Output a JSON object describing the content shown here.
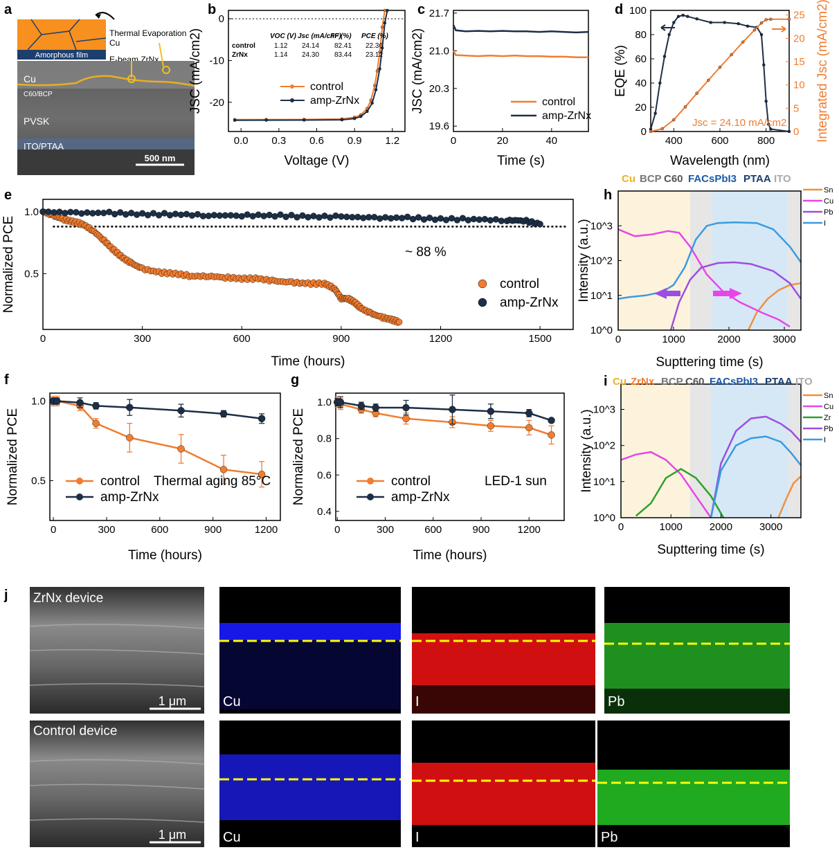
{
  "colors": {
    "control": "#f07d30",
    "amp": "#1c2f46",
    "cu": "#e845e8",
    "pb": "#9b4fe0",
    "i": "#3a9be0",
    "sn": "#f0903e",
    "zr": "#2aa02a",
    "cu_band": "#fdf3dc",
    "bcp_band": "#e6e6e6",
    "pvsk_band": "#d6e8f6"
  },
  "panel_labels": {
    "a": "a",
    "b": "b",
    "c": "c",
    "d": "d",
    "e": "e",
    "f": "f",
    "g": "g",
    "h": "h",
    "i": "i",
    "j": "j"
  },
  "panel_a": {
    "labels": {
      "thermal": "Thermal Evaporation",
      "cu_top": "Cu",
      "amorphous": "Amorphous film",
      "ebeam": "E-beam ZrNx",
      "cu": "Cu",
      "c60bcp": "C60/BCP",
      "pvsk": "PVSK",
      "ito": "ITO/PTAA",
      "scale": "500 nm"
    }
  },
  "panel_j": {
    "labels": {
      "zrn_device": "ZrNx device",
      "control_device": "Control device",
      "scale1": "1 μm",
      "scale2": "1 μm",
      "cu1": "Cu",
      "i1": "I",
      "pb1": "Pb",
      "cu2": "Cu",
      "i2": "I",
      "pb2": "Pb"
    }
  },
  "chart_data": [
    {
      "id": "b",
      "type": "line",
      "xlabel": "Voltage (V)",
      "ylabel": "JSC (mA/cm2)",
      "xlim": [
        -0.1,
        1.3
      ],
      "ylim": [
        -27,
        2
      ],
      "xticks": [
        "0.0",
        "0.3",
        "0.6",
        "0.9",
        "1.2"
      ],
      "yticks": [
        "0",
        "-10",
        "-20"
      ],
      "legend": [
        "control",
        "amp-ZrNx"
      ],
      "table": {
        "header": [
          "VOC (V)",
          "Jsc (mA/cm²)",
          "FF (%)",
          "PCE (%)"
        ],
        "rows": [
          {
            "name": "control",
            "values": [
              "1.12",
              "24.14",
              "82.41",
              "22.36"
            ]
          },
          {
            "name": "ZrNx",
            "values": [
              "1.14",
              "24.30",
              "83.44",
              "23.12"
            ]
          }
        ]
      },
      "series": [
        {
          "name": "control",
          "x": [
            -0.05,
            0.2,
            0.5,
            0.8,
            0.9,
            0.95,
            1.0,
            1.03,
            1.06,
            1.08,
            1.1,
            1.12,
            1.14
          ],
          "y": [
            -24.14,
            -24.13,
            -24.11,
            -24.0,
            -23.6,
            -23.0,
            -21.5,
            -19.5,
            -16.0,
            -12.5,
            -8.0,
            -2.0,
            2.0
          ]
        },
        {
          "name": "amp-ZrNx",
          "x": [
            -0.05,
            0.2,
            0.5,
            0.8,
            0.9,
            0.95,
            1.0,
            1.04,
            1.07,
            1.1,
            1.12,
            1.14,
            1.16
          ],
          "y": [
            -24.3,
            -24.29,
            -24.27,
            -24.2,
            -23.9,
            -23.4,
            -22.2,
            -20.2,
            -17.0,
            -12.0,
            -7.0,
            -1.0,
            2.0
          ]
        }
      ]
    },
    {
      "id": "c",
      "type": "line",
      "xlabel": "Time (s)",
      "ylabel": "JSC (mA/cm2)",
      "xlim": [
        0,
        55
      ],
      "ylim": [
        19.5,
        21.75
      ],
      "xticks": [
        "0",
        "20",
        "40"
      ],
      "yticks": [
        "21.7",
        "21.0",
        "20.3",
        "19.6"
      ],
      "legend": [
        "control",
        "amp-ZrNx"
      ],
      "series": [
        {
          "name": "control",
          "x": [
            0,
            1,
            5,
            10,
            15,
            20,
            25,
            30,
            35,
            40,
            45,
            50,
            55
          ],
          "y": [
            21.0,
            20.92,
            20.91,
            20.9,
            20.91,
            20.9,
            20.91,
            20.9,
            20.9,
            20.89,
            20.89,
            20.88,
            20.88
          ]
        },
        {
          "name": "amp-ZrNx",
          "x": [
            0,
            1,
            5,
            10,
            15,
            20,
            25,
            30,
            35,
            40,
            45,
            50,
            55
          ],
          "y": [
            21.48,
            21.38,
            21.36,
            21.37,
            21.36,
            21.37,
            21.36,
            21.36,
            21.35,
            21.36,
            21.35,
            21.34,
            21.35
          ]
        }
      ]
    },
    {
      "id": "d",
      "type": "line",
      "xlabel": "Wavelength (nm)",
      "ylabel": "EQE (%)",
      "y2label": "Integrated Jsc (mA/cm2)",
      "xlim": [
        300,
        900
      ],
      "ylim": [
        0,
        100
      ],
      "y2lim": [
        0,
        26
      ],
      "xticks": [
        "400",
        "600",
        "800"
      ],
      "yticks": [
        "0",
        "20",
        "40",
        "60",
        "80",
        "100"
      ],
      "y2ticks": [
        "0",
        "5",
        "10",
        "15",
        "20",
        "25"
      ],
      "annotation": "Jsc = 24.10 mA/cm2",
      "series": [
        {
          "name": "EQE",
          "x": [
            300,
            320,
            340,
            360,
            380,
            400,
            420,
            440,
            460,
            500,
            560,
            620,
            680,
            720,
            760,
            780,
            790,
            800,
            810,
            820,
            900
          ],
          "y": [
            2,
            15,
            40,
            62,
            80,
            90,
            95,
            96,
            95,
            93,
            90,
            90,
            89,
            87,
            86,
            80,
            55,
            25,
            6,
            2,
            0
          ]
        },
        {
          "name": "Integrated Jsc",
          "x": [
            300,
            350,
            400,
            450,
            500,
            550,
            600,
            650,
            700,
            750,
            780,
            800,
            820,
            900
          ],
          "y": [
            0,
            0.6,
            2.5,
            5.3,
            8.2,
            11.0,
            13.8,
            16.5,
            19.2,
            21.8,
            23.3,
            24.0,
            24.1,
            24.1
          ]
        }
      ]
    },
    {
      "id": "e",
      "type": "scatter",
      "xlabel": "Time (hours)",
      "ylabel": "Normalized PCE",
      "xlim": [
        0,
        1600
      ],
      "ylim": [
        0.05,
        1.1
      ],
      "xticks": [
        "0",
        "300",
        "600",
        "900",
        "1200",
        "1500"
      ],
      "yticks": [
        "0.5",
        "1.0"
      ],
      "annotation": "~ 88 %",
      "reference_line": 0.88,
      "legend": [
        "control",
        "amp-ZrNx"
      ],
      "series": [
        {
          "name": "control",
          "x": [
            0,
            30,
            60,
            90,
            120,
            150,
            180,
            210,
            240,
            270,
            300,
            350,
            400,
            450,
            500,
            550,
            600,
            650,
            700,
            750,
            800,
            850,
            880,
            900,
            920,
            940,
            960,
            990,
            1020,
            1050,
            1075
          ],
          "y": [
            1.0,
            0.97,
            0.94,
            0.92,
            0.9,
            0.85,
            0.78,
            0.7,
            0.63,
            0.58,
            0.54,
            0.51,
            0.5,
            0.48,
            0.48,
            0.47,
            0.46,
            0.46,
            0.44,
            0.43,
            0.42,
            0.42,
            0.38,
            0.3,
            0.3,
            0.27,
            0.22,
            0.18,
            0.15,
            0.13,
            0.11
          ]
        },
        {
          "name": "amp-ZrNx",
          "x": [
            0,
            100,
            200,
            300,
            400,
            500,
            600,
            700,
            800,
            900,
            1000,
            1100,
            1200,
            1300,
            1400,
            1450,
            1500
          ],
          "y": [
            1.0,
            0.99,
            0.99,
            0.98,
            0.98,
            0.97,
            0.97,
            0.97,
            0.96,
            0.96,
            0.95,
            0.95,
            0.94,
            0.94,
            0.93,
            0.93,
            0.9
          ]
        }
      ]
    },
    {
      "id": "f",
      "type": "line",
      "xlabel": "Time (hours)",
      "ylabel": "Normalized PCE",
      "xlim": [
        -20,
        1280
      ],
      "ylim": [
        0.25,
        1.05
      ],
      "xticks": [
        "0",
        "300",
        "600",
        "900",
        "1200"
      ],
      "yticks": [
        "0.5",
        "1.0"
      ],
      "annotation": "Thermal aging 85°C",
      "legend": [
        "control",
        "amp-ZrNx"
      ],
      "series": [
        {
          "name": "control",
          "x": [
            0,
            20,
            150,
            240,
            430,
            720,
            960,
            1175
          ],
          "y": [
            1.0,
            1.0,
            0.97,
            0.86,
            0.77,
            0.7,
            0.57,
            0.54
          ],
          "err": [
            0.03,
            0.03,
            0.03,
            0.03,
            0.09,
            0.09,
            0.09,
            0.08
          ]
        },
        {
          "name": "amp-ZrNx",
          "x": [
            0,
            20,
            150,
            240,
            430,
            720,
            960,
            1175
          ],
          "y": [
            1.0,
            1.0,
            0.99,
            0.97,
            0.96,
            0.94,
            0.92,
            0.89
          ],
          "err": [
            0.02,
            0.02,
            0.03,
            0.02,
            0.05,
            0.04,
            0.02,
            0.03
          ]
        }
      ]
    },
    {
      "id": "g",
      "type": "line",
      "xlabel": "Time (hours)",
      "ylabel": "Normalized PCE",
      "xlim": [
        -10,
        1420
      ],
      "ylim": [
        0.35,
        1.05
      ],
      "xticks": [
        "0",
        "300",
        "600",
        "900",
        "1200"
      ],
      "yticks": [
        "0.4",
        "0.6",
        "0.8",
        "1.0"
      ],
      "annotation": "LED-1 sun",
      "legend": [
        "control",
        "amp-ZrNx"
      ],
      "series": [
        {
          "name": "control",
          "x": [
            0,
            20,
            150,
            240,
            430,
            720,
            960,
            1200,
            1340
          ],
          "y": [
            1.0,
            0.99,
            0.96,
            0.94,
            0.91,
            0.89,
            0.87,
            0.86,
            0.82
          ],
          "err": [
            0.03,
            0.03,
            0.02,
            0.02,
            0.03,
            0.03,
            0.03,
            0.04,
            0.05
          ]
        },
        {
          "name": "amp-ZrNx",
          "x": [
            0,
            20,
            150,
            240,
            430,
            720,
            960,
            1200,
            1340
          ],
          "y": [
            1.0,
            1.0,
            0.98,
            0.97,
            0.97,
            0.96,
            0.95,
            0.94,
            0.9
          ],
          "err": [
            0.02,
            0.03,
            0.02,
            0.02,
            0.04,
            0.08,
            0.04,
            0.02,
            0.01
          ]
        }
      ]
    },
    {
      "id": "h",
      "type": "line",
      "xlabel": "Supttering time (s)",
      "ylabel": "Intensity (a.u.)",
      "xlim": [
        0,
        3300
      ],
      "ylim_log10": [
        0,
        4
      ],
      "xticks": [
        "0",
        "1000",
        "2000",
        "3000"
      ],
      "yticks": [
        "10^0",
        "10^1",
        "10^2",
        "10^3"
      ],
      "layers": [
        "Cu",
        "BCP",
        "C60",
        "FACsPbI3",
        "PTAA",
        "ITO"
      ],
      "series": [
        {
          "name": "Sn",
          "x": [
            2350,
            2500,
            2700,
            2900,
            3100,
            3300
          ],
          "log10_y": [
            0.0,
            0.5,
            0.9,
            1.15,
            1.3,
            1.35
          ]
        },
        {
          "name": "Cu",
          "x": [
            0,
            300,
            600,
            900,
            1100,
            1300,
            1600,
            1900,
            2200,
            2600,
            2900,
            3100
          ],
          "log10_y": [
            2.9,
            2.7,
            2.75,
            2.85,
            2.8,
            2.4,
            1.6,
            1.1,
            0.8,
            0.5,
            0.3,
            0.1
          ]
        },
        {
          "name": "Pb",
          "x": [
            950,
            1100,
            1300,
            1500,
            1800,
            2100,
            2400,
            2800,
            3100,
            3300
          ],
          "log10_y": [
            0.0,
            0.8,
            1.45,
            1.8,
            1.93,
            1.95,
            1.9,
            1.7,
            1.35,
            0.9
          ]
        },
        {
          "name": "I",
          "x": [
            0,
            200,
            500,
            800,
            1000,
            1200,
            1400,
            1600,
            1800,
            2100,
            2500,
            2800,
            3100,
            3300
          ],
          "log10_y": [
            0.9,
            0.95,
            1.0,
            1.1,
            1.3,
            1.8,
            2.6,
            3.0,
            3.08,
            3.1,
            3.08,
            2.9,
            2.4,
            1.95
          ]
        }
      ]
    },
    {
      "id": "i",
      "type": "line",
      "xlabel": "Supttering time (s)",
      "ylabel": "Intensity (a.u.)",
      "xlim": [
        0,
        3600
      ],
      "ylim_log10": [
        0,
        3.7
      ],
      "xticks": [
        "0",
        "1000",
        "2000",
        "3000"
      ],
      "yticks": [
        "10^0",
        "10^1",
        "10^2",
        "10^3"
      ],
      "layers": [
        "Cu",
        "ZrNx",
        "BCP",
        "C60",
        "FACsPbI3",
        "PTAA",
        "ITO"
      ],
      "series": [
        {
          "name": "Sn",
          "x": [
            3150,
            3300,
            3450,
            3600
          ],
          "log10_y": [
            0.0,
            0.5,
            0.95,
            1.15
          ]
        },
        {
          "name": "Cu",
          "x": [
            0,
            300,
            600,
            900,
            1200,
            1500,
            1800
          ],
          "log10_y": [
            1.6,
            1.75,
            1.82,
            1.6,
            1.2,
            0.6,
            0.0
          ]
        },
        {
          "name": "Zr",
          "x": [
            300,
            600,
            900,
            1200,
            1500,
            1800,
            2050
          ],
          "log10_y": [
            0.05,
            0.4,
            1.1,
            1.35,
            1.1,
            0.6,
            0.0
          ]
        },
        {
          "name": "Pb",
          "x": [
            1800,
            2000,
            2300,
            2600,
            2900,
            3200,
            3400,
            3600
          ],
          "log10_y": [
            0.0,
            1.5,
            2.4,
            2.75,
            2.8,
            2.6,
            2.4,
            2.1
          ]
        },
        {
          "name": "I",
          "x": [
            1800,
            2000,
            2300,
            2600,
            2900,
            3200,
            3400,
            3600
          ],
          "log10_y": [
            0.0,
            1.3,
            2.0,
            2.2,
            2.25,
            2.1,
            1.8,
            1.45
          ]
        }
      ]
    }
  ]
}
